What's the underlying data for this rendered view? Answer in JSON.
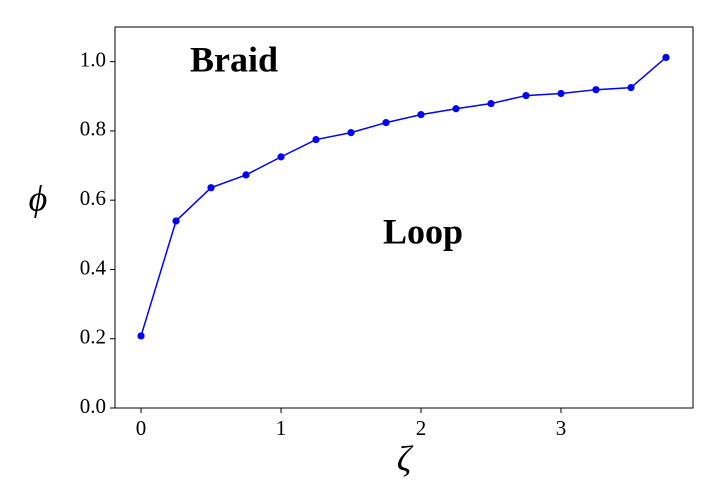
{
  "chart_data": {
    "type": "line",
    "x_label": "ζ",
    "y_label": "ϕ",
    "annotations": [
      "Braid",
      "Loop"
    ],
    "x": [
      0,
      0.25,
      0.5,
      0.75,
      1,
      1.25,
      1.5,
      1.75,
      2,
      2.25,
      2.5,
      2.75,
      3,
      3.25,
      3.5,
      3.75
    ],
    "series": [
      {
        "color": "#0000ff",
        "values": [
          0.208,
          0.54,
          0.636,
          0.673,
          0.725,
          0.775,
          0.795,
          0.824,
          0.847,
          0.864,
          0.879,
          0.902,
          0.908,
          0.919,
          0.925,
          1.012
        ]
      }
    ],
    "xlim": [
      -0.186,
      3.943
    ],
    "ylim": [
      0,
      1.1
    ],
    "xticks": [
      0,
      1,
      2,
      3
    ],
    "yticks": [
      {
        "value": 0,
        "label": "0.0"
      },
      {
        "value": 0.2,
        "label": "0.2"
      },
      {
        "value": 0.4,
        "label": "0.4"
      },
      {
        "value": 0.6,
        "label": "0.6"
      },
      {
        "value": 0.8,
        "label": "0.8"
      },
      {
        "value": 1.0,
        "label": "1.0"
      }
    ],
    "grid": false,
    "markers": true
  }
}
